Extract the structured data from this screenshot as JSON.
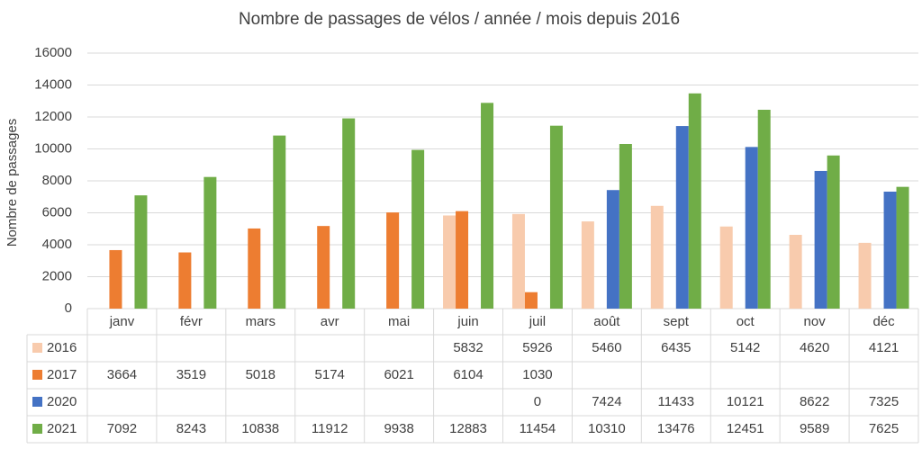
{
  "chart_data": {
    "type": "bar",
    "title": "Nombre de passages de vélos / année / mois depuis 2016",
    "y_label": "Nombre de passages",
    "categories": [
      "janv",
      "févr",
      "mars",
      "avr",
      "mai",
      "juin",
      "juil",
      "août",
      "sept",
      "oct",
      "nov",
      "déc"
    ],
    "series": [
      {
        "name": "2016",
        "color": "#f8cbad",
        "values": [
          null,
          null,
          null,
          null,
          null,
          5832,
          5926,
          5460,
          6435,
          5142,
          4620,
          4121
        ]
      },
      {
        "name": "2017",
        "color": "#ed7d31",
        "values": [
          3664,
          3519,
          5018,
          5174,
          6021,
          6104,
          1030,
          null,
          null,
          null,
          null,
          null
        ]
      },
      {
        "name": "2020",
        "color": "#4472c4",
        "values": [
          null,
          null,
          null,
          null,
          null,
          null,
          0,
          7424,
          11433,
          10121,
          8622,
          7325
        ]
      },
      {
        "name": "2021",
        "color": "#70ad47",
        "values": [
          7092,
          8243,
          10838,
          11912,
          9938,
          12883,
          11454,
          10310,
          13476,
          12451,
          9589,
          7625
        ]
      }
    ],
    "ylim": [
      0,
      16000
    ],
    "yticks": [
      0,
      2000,
      4000,
      6000,
      8000,
      10000,
      12000,
      14000,
      16000
    ],
    "grid": true,
    "data_table": true
  }
}
